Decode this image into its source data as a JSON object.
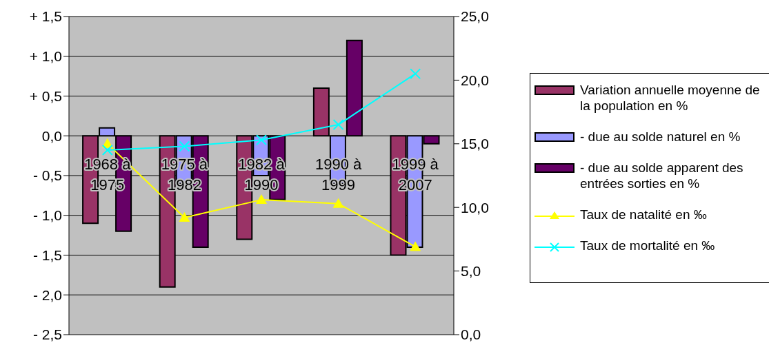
{
  "chart_data": {
    "type": "bar",
    "categories": [
      "1968 à 1975",
      "1975 à 1982",
      "1982 à 1990",
      "1990 à 1999",
      "1999 à 2007"
    ],
    "series": [
      {
        "name": "Variation annuelle moyenne de la population en %",
        "color": "#993366",
        "values": [
          -1.1,
          -1.9,
          -1.3,
          0.6,
          -1.5
        ]
      },
      {
        "name": "- due au solde naturel en %",
        "color": "#9999ff",
        "values": [
          0.1,
          -0.6,
          -0.5,
          -0.6,
          -1.4
        ]
      },
      {
        "name": "- due au solde apparent des entrées sorties en %",
        "color": "#660066",
        "values": [
          -1.2,
          -1.4,
          -0.8,
          1.2,
          -0.1
        ]
      },
      {
        "name": "Taux de natalité en ‰",
        "type": "line",
        "axis": "y2",
        "color": "#ffff00",
        "marker": "triangle",
        "values": [
          15.0,
          9.2,
          10.6,
          10.3,
          6.9
        ]
      },
      {
        "name": "Taux de mortalité en ‰",
        "type": "line",
        "axis": "y2",
        "color": "#00ffff",
        "marker": "cross",
        "values": [
          14.5,
          14.8,
          15.3,
          16.5,
          20.5
        ]
      }
    ],
    "ylim": [
      -2.5,
      1.5
    ],
    "yticks": [
      {
        "value": -2.5,
        "label": "- 2,5"
      },
      {
        "value": -2,
        "label": "- 2,0"
      },
      {
        "value": -1.5,
        "label": "- 1,5"
      },
      {
        "value": -1,
        "label": "- 1,0"
      },
      {
        "value": -0.5,
        "label": "- 0,5"
      },
      {
        "value": 0,
        "label": "0,0"
      },
      {
        "value": 0.5,
        "label": "+ 0,5"
      },
      {
        "value": 1,
        "label": "+ 1,0"
      },
      {
        "value": 1.5,
        "label": "+ 1,5"
      }
    ],
    "y2lim": [
      0,
      25
    ],
    "y2ticks": [
      {
        "value": 0,
        "label": "0,0"
      },
      {
        "value": 5,
        "label": "5,0"
      },
      {
        "value": 10,
        "label": "10,0"
      },
      {
        "value": 15,
        "label": "15,0"
      },
      {
        "value": 20,
        "label": "20,0"
      },
      {
        "value": 25,
        "label": "25,0"
      }
    ],
    "grid": "y",
    "legend": "right"
  }
}
